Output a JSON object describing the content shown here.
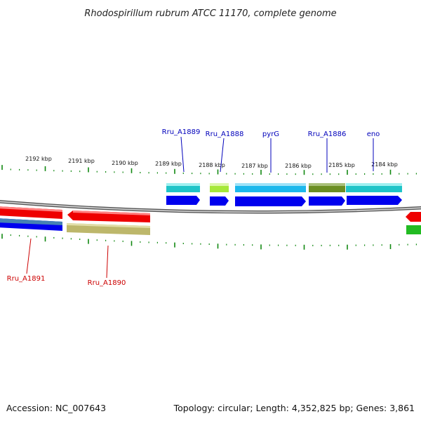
{
  "title": "Rhodospirillum rubrum ATCC 11170, complete genome",
  "footer": {
    "accession": "Accession: NC_007643",
    "topology": "Topology: circular; Length: 4,352,825 bp; Genes: 3,861"
  },
  "scale": {
    "tick_labels": [
      "2192 kbp",
      "2191 kbp",
      "2190 kbp",
      "2189 kbp",
      "2188 kbp",
      "2187 kbp",
      "2186 kbp",
      "2185 kbp",
      "2184 kbp"
    ]
  },
  "genes": {
    "labeled": [
      {
        "name": "Rru_A1889",
        "color": "#0000bb"
      },
      {
        "name": "Rru_A1888",
        "color": "#0000bb"
      },
      {
        "name": "pyrG",
        "color": "#0000bb"
      },
      {
        "name": "Rru_A1886",
        "color": "#0000bb"
      },
      {
        "name": "eno",
        "color": "#0000bb"
      },
      {
        "name": "Rru_A1891",
        "color": "#cc0000"
      },
      {
        "name": "Rru_A1890",
        "color": "#cc0000"
      }
    ]
  },
  "colors": {
    "forward_strand": "#0000ee",
    "reverse_strand": "#ee0000",
    "backbone": "#888888",
    "ticks": "#118811",
    "cds_cyan": "#22cccc",
    "cds_sky": "#22bbee",
    "cds_lime": "#aaee33",
    "cds_olive": "#6b8e23",
    "cds_khaki": "#bdb76b",
    "cds_steel": "#4682b4",
    "cds_green": "#22bb22"
  }
}
